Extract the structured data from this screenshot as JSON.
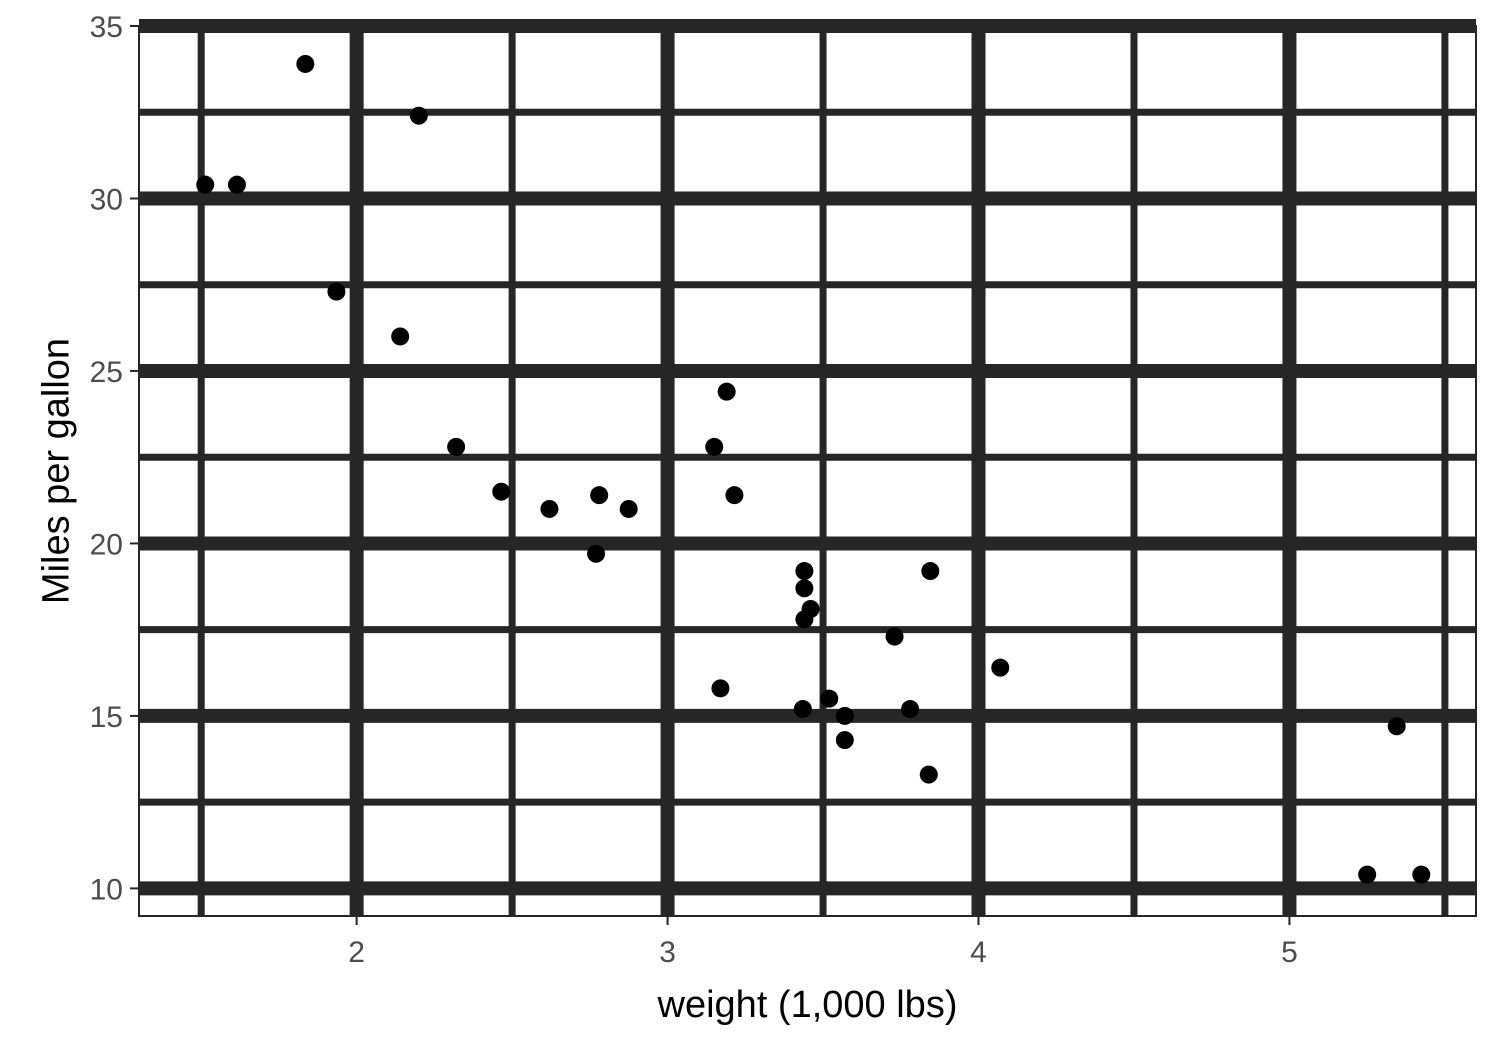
{
  "chart_data": {
    "type": "scatter",
    "title": "",
    "xlabel": "weight (1,000 lbs)",
    "ylabel": "Miles per gallon",
    "xlim": [
      1.3,
      5.6
    ],
    "ylim": [
      9.2,
      35.0
    ],
    "x_ticks": [
      2,
      3,
      4,
      5
    ],
    "x_tick_labels": [
      "2",
      "3",
      "4",
      "5"
    ],
    "x_minor_ticks": [
      1.5,
      2.5,
      3.5,
      4.5,
      5.5
    ],
    "y_ticks": [
      10,
      15,
      20,
      25,
      30,
      35
    ],
    "y_tick_labels": [
      "10",
      "15",
      "20",
      "25",
      "30",
      "35"
    ],
    "y_minor_ticks": [
      12.5,
      17.5,
      22.5,
      27.5,
      32.5
    ],
    "grid": true,
    "legend": "none",
    "colors": {
      "points": "#000000",
      "grid": "#262626",
      "axis_text": "#4d4d4d",
      "panel_border": "#262626"
    },
    "series": [
      {
        "x": [
          2.62,
          2.875,
          2.32,
          3.215,
          3.44,
          3.46,
          3.57,
          3.19,
          3.15,
          3.44,
          3.44,
          4.07,
          3.73,
          3.78,
          5.25,
          5.424,
          5.345,
          2.2,
          1.615,
          1.835,
          2.465,
          3.52,
          3.435,
          3.84,
          3.845,
          1.935,
          2.14,
          1.513,
          3.17,
          2.77,
          3.57,
          2.78
        ],
        "y": [
          21.0,
          21.0,
          22.8,
          21.4,
          18.7,
          18.1,
          14.3,
          24.4,
          22.8,
          19.2,
          17.8,
          16.4,
          17.3,
          15.2,
          10.4,
          10.4,
          14.7,
          32.4,
          30.4,
          33.9,
          21.5,
          15.5,
          15.2,
          13.3,
          19.2,
          27.3,
          26.0,
          30.4,
          15.8,
          19.7,
          15.0,
          21.4
        ]
      }
    ]
  }
}
